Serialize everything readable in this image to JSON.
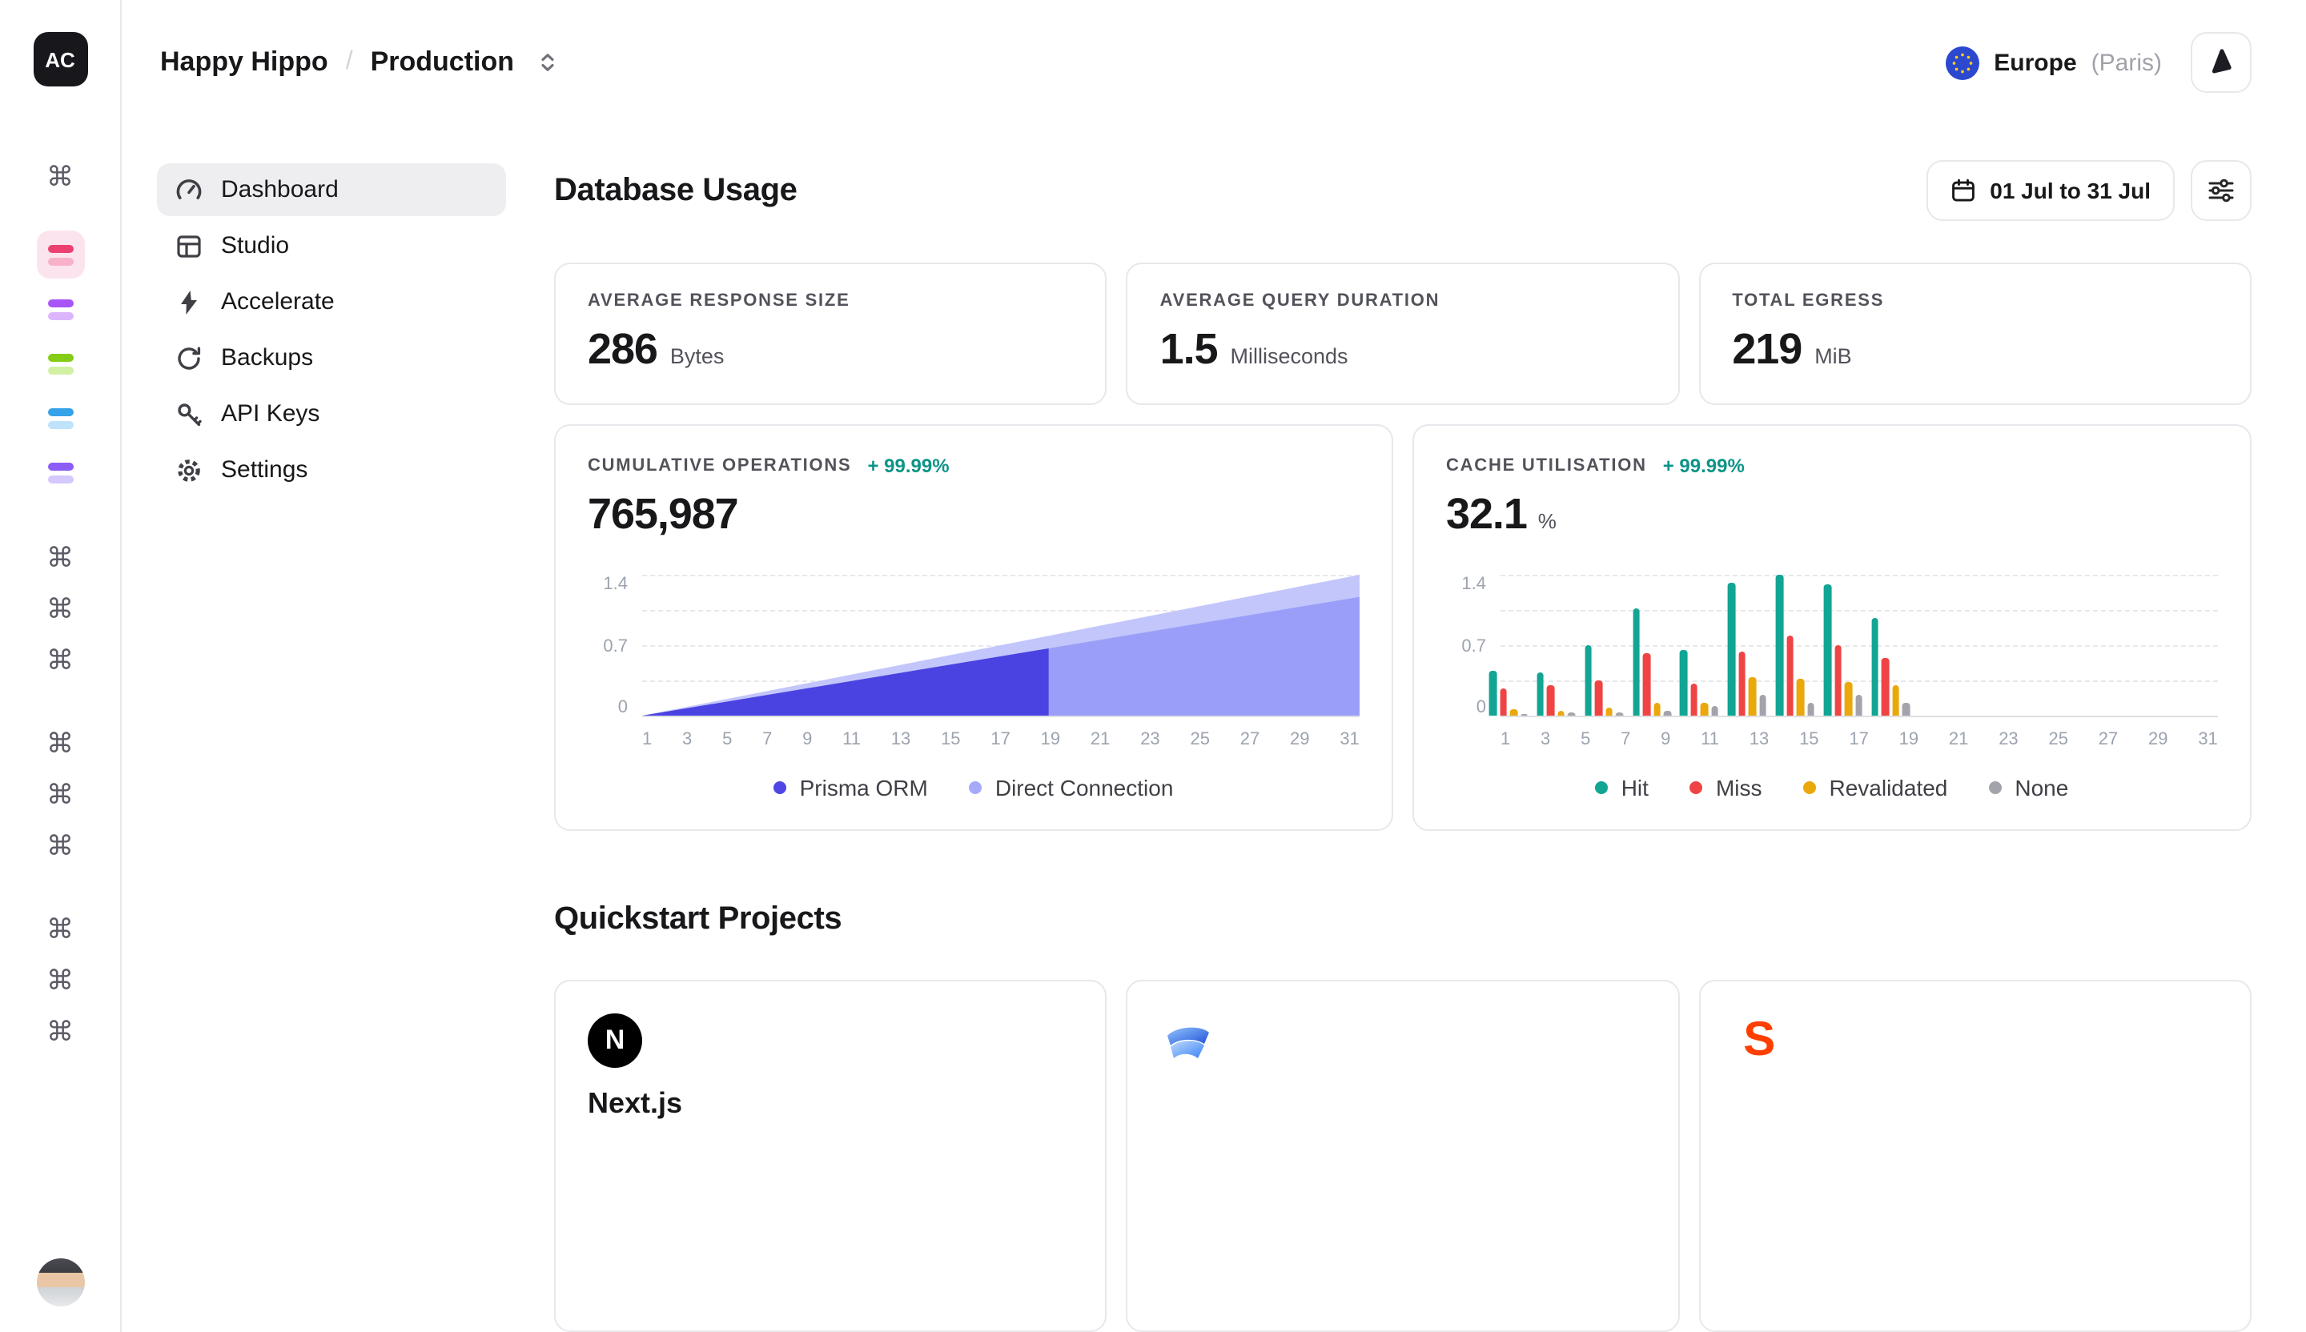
{
  "workspace": {
    "initials": "AC"
  },
  "breadcrumb": {
    "project": "Happy Hippo",
    "separator": "/",
    "environment": "Production"
  },
  "header": {
    "region": "Europe",
    "region_detail": "(Paris)"
  },
  "sidebar": {
    "nav": [
      {
        "label": "Dashboard",
        "icon": "gauge-icon",
        "active": true
      },
      {
        "label": "Studio",
        "icon": "table-icon",
        "active": false
      },
      {
        "label": "Accelerate",
        "icon": "bolt-icon",
        "active": false
      },
      {
        "label": "Backups",
        "icon": "restore-icon",
        "active": false
      },
      {
        "label": "API Keys",
        "icon": "key-icon",
        "active": false
      },
      {
        "label": "Settings",
        "icon": "gear-icon",
        "active": false
      }
    ]
  },
  "page": {
    "title": "Database Usage",
    "date_range": "01 Jul to 31 Jul",
    "quickstart_title": "Quickstart Projects"
  },
  "stats": [
    {
      "label": "AVERAGE RESPONSE SIZE",
      "value": "286",
      "unit": "Bytes"
    },
    {
      "label": "AVERAGE QUERY DURATION",
      "value": "1.5",
      "unit": "Milliseconds"
    },
    {
      "label": "TOTAL EGRESS",
      "value": "219",
      "unit": "MiB"
    }
  ],
  "chart_data": [
    {
      "type": "area",
      "title": "CUMULATIVE OPERATIONS",
      "delta": "+ 99.99%",
      "value": "765,987",
      "x_ticks": [
        1,
        3,
        5,
        7,
        9,
        11,
        13,
        15,
        17,
        19,
        21,
        23,
        25,
        27,
        29,
        31
      ],
      "y_ticks": [
        0,
        0.7,
        1.4
      ],
      "ylim": [
        0,
        1.4
      ],
      "split_day": 18,
      "mid_color": "#9a9ef8",
      "series": [
        {
          "name": "Prisma ORM",
          "color": "#4b42e2",
          "from_day": 1,
          "to_day": 18,
          "end_value": 1.18
        },
        {
          "name": "Direct Connection",
          "color": "#c3c6fb",
          "from_day": 1,
          "to_day": 31,
          "end_value": 1.4
        }
      ],
      "legend": [
        {
          "label": "Prisma ORM",
          "color": "#4f46e5"
        },
        {
          "label": "Direct Connection",
          "color": "#a6aaf9"
        }
      ]
    },
    {
      "type": "bar",
      "title": "CACHE UTILISATION",
      "delta": "+ 99.99%",
      "value": "32.1",
      "unit": "%",
      "x_ticks": [
        1,
        3,
        5,
        7,
        9,
        11,
        13,
        15,
        17,
        19,
        21,
        23,
        25,
        27,
        29,
        31
      ],
      "y_ticks": [
        0,
        0.7,
        1.4
      ],
      "ylim": [
        0,
        1.4
      ],
      "days": [
        1,
        3,
        5,
        7,
        9,
        11,
        13,
        15,
        17
      ],
      "series": [
        {
          "name": "Hit",
          "color": "#12a594",
          "values": [
            0.45,
            0.43,
            0.7,
            1.07,
            0.65,
            1.32,
            1.4,
            1.3,
            0.97
          ]
        },
        {
          "name": "Miss",
          "color": "#ef4444",
          "values": [
            0.27,
            0.3,
            0.35,
            0.62,
            0.32,
            0.64,
            0.8,
            0.7,
            0.57
          ]
        },
        {
          "name": "Revalidated",
          "color": "#eaa80b",
          "values": [
            0.06,
            0.05,
            0.08,
            0.13,
            0.12,
            0.38,
            0.36,
            0.33,
            0.3
          ]
        },
        {
          "name": "None",
          "color": "#a3a3ab",
          "values": [
            0.02,
            0.03,
            0.04,
            0.05,
            0.1,
            0.2,
            0.12,
            0.2,
            0.12
          ]
        }
      ]
    }
  ],
  "quickstart": [
    {
      "name": "Next.js",
      "logo": "nextjs-logo",
      "logo_text": "N"
    },
    {
      "name": "",
      "logo": "solidstart-logo",
      "logo_text": ""
    },
    {
      "name": "",
      "logo": "svelte-logo",
      "logo_text": "S"
    }
  ]
}
